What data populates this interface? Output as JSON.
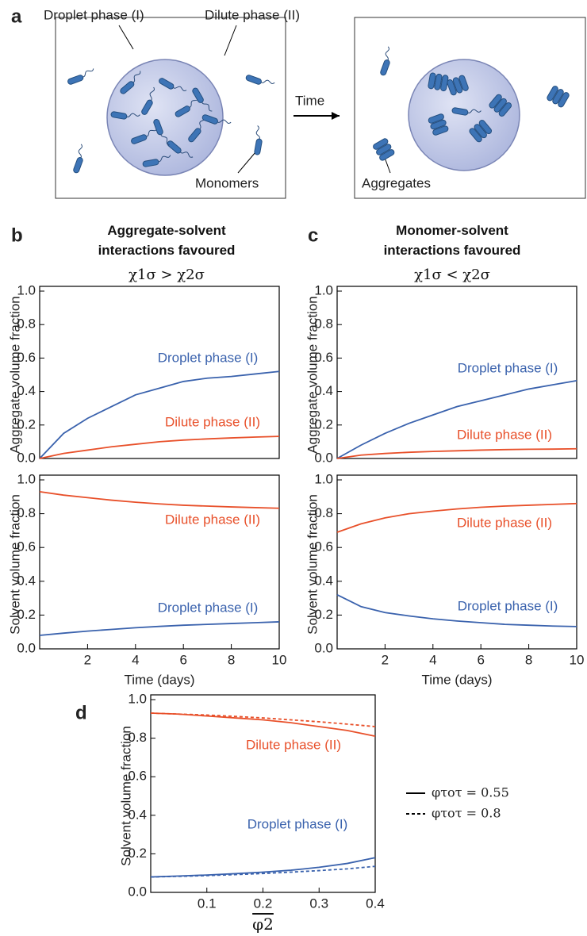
{
  "panel_a": {
    "label": "a",
    "droplet_label": "Droplet phase (I)",
    "dilute_label": "Dilute phase (II)",
    "monomers_label": "Monomers",
    "arrow_label": "Time",
    "aggregates_label": "Aggregates"
  },
  "chart_data": [
    {
      "type": "line",
      "panel": "b",
      "title": "Aggregate-solvent interactions favoured",
      "subtitle": "χ1σ > χ2σ",
      "ylabel": "Aggregate volume fraction",
      "x": [
        0,
        1,
        2,
        3,
        4,
        5,
        6,
        7,
        8,
        9,
        10
      ],
      "xlim": [
        0,
        10
      ],
      "ylim": [
        0,
        1
      ],
      "yticks": [
        {
          "value": 0,
          "label": "0.0"
        },
        0.2,
        0.4,
        0.6,
        0.8,
        {
          "value": 1,
          "label": "1.0"
        }
      ],
      "series": [
        {
          "name": "Droplet phase (I)",
          "color": "#3a62ad",
          "values": [
            0,
            0.15,
            0.24,
            0.31,
            0.38,
            0.42,
            0.46,
            0.48,
            0.49,
            0.505,
            0.52
          ]
        },
        {
          "name": "Dilute phase (II)",
          "color": "#e8502a",
          "values": [
            0,
            0.03,
            0.05,
            0.07,
            0.085,
            0.1,
            0.11,
            0.117,
            0.123,
            0.128,
            0.132
          ]
        }
      ]
    },
    {
      "type": "line",
      "ylabel": "Solvent volume fraction",
      "xlabel": "Time (days)",
      "x": [
        0,
        1,
        2,
        3,
        4,
        5,
        6,
        7,
        8,
        9,
        10
      ],
      "xlim": [
        0,
        10
      ],
      "ylim": [
        0,
        1
      ],
      "xticks": [
        2,
        4,
        6,
        8,
        10
      ],
      "yticks": [
        {
          "value": 0,
          "label": "0.0"
        },
        0.2,
        0.4,
        0.6,
        0.8,
        {
          "value": 1,
          "label": "1.0"
        }
      ],
      "series": [
        {
          "name": "Droplet phase (I)",
          "color": "#3a62ad",
          "values": [
            0.08,
            0.093,
            0.105,
            0.115,
            0.125,
            0.133,
            0.14,
            0.145,
            0.15,
            0.155,
            0.16
          ]
        },
        {
          "name": "Dilute phase (II)",
          "color": "#e8502a",
          "values": [
            0.93,
            0.91,
            0.895,
            0.88,
            0.868,
            0.858,
            0.85,
            0.845,
            0.84,
            0.836,
            0.832
          ]
        }
      ]
    },
    {
      "type": "line",
      "panel": "c",
      "title": "Monomer-solvent interactions favoured",
      "subtitle": "χ1σ < χ2σ",
      "ylabel": "Aggregate volume fraction",
      "x": [
        0,
        1,
        2,
        3,
        4,
        5,
        6,
        7,
        8,
        9,
        10
      ],
      "xlim": [
        0,
        10
      ],
      "ylim": [
        0,
        1
      ],
      "yticks": [
        {
          "value": 0,
          "label": "0.0"
        },
        0.2,
        0.4,
        0.6,
        0.8,
        {
          "value": 1,
          "label": "1.0"
        }
      ],
      "series": [
        {
          "name": "Droplet phase (I)",
          "color": "#3a62ad",
          "values": [
            0,
            0.08,
            0.15,
            0.21,
            0.26,
            0.31,
            0.345,
            0.38,
            0.415,
            0.44,
            0.465
          ]
        },
        {
          "name": "Dilute phase (II)",
          "color": "#e8502a",
          "values": [
            0,
            0.02,
            0.03,
            0.037,
            0.042,
            0.046,
            0.05,
            0.053,
            0.055,
            0.056,
            0.058
          ]
        }
      ]
    },
    {
      "type": "line",
      "ylabel": "Solvent volume fraction",
      "xlabel": "Time (days)",
      "x": [
        0,
        1,
        2,
        3,
        4,
        5,
        6,
        7,
        8,
        9,
        10
      ],
      "xlim": [
        0,
        10
      ],
      "ylim": [
        0,
        1
      ],
      "xticks": [
        2,
        4,
        6,
        8,
        10
      ],
      "yticks": [
        {
          "value": 0,
          "label": "0.0"
        },
        0.2,
        0.4,
        0.6,
        0.8,
        {
          "value": 1,
          "label": "1.0"
        }
      ],
      "series": [
        {
          "name": "Droplet phase (I)",
          "color": "#3a62ad",
          "values": [
            0.32,
            0.25,
            0.215,
            0.195,
            0.178,
            0.165,
            0.155,
            0.145,
            0.14,
            0.135,
            0.132
          ]
        },
        {
          "name": "Dilute phase (II)",
          "color": "#e8502a",
          "values": [
            0.69,
            0.74,
            0.775,
            0.8,
            0.815,
            0.828,
            0.838,
            0.845,
            0.85,
            0.855,
            0.86
          ]
        }
      ]
    },
    {
      "type": "line",
      "panel": "d",
      "ylabel": "Solvent volume fraction",
      "xlabel": "φ2",
      "x": [
        0,
        0.05,
        0.1,
        0.15,
        0.2,
        0.25,
        0.3,
        0.35,
        0.4
      ],
      "xlim": [
        0,
        0.4
      ],
      "ylim": [
        0,
        1
      ],
      "xticks": [
        0.1,
        0.2,
        0.3,
        0.4
      ],
      "yticks": [
        {
          "value": 0,
          "label": "0.0"
        },
        0.2,
        0.4,
        0.6,
        0.8,
        {
          "value": 1,
          "label": "1.0"
        }
      ],
      "annotations": [
        "Dilute phase (II)",
        "Droplet phase (I)"
      ],
      "legend": [
        {
          "label": "φτοτ = 0.55",
          "dash": "solid"
        },
        {
          "label": "φτοτ = 0.8",
          "dash": "dashed"
        }
      ],
      "series": [
        {
          "color": "#e8502a",
          "dash": "solid",
          "values": [
            0.93,
            0.925,
            0.915,
            0.905,
            0.895,
            0.88,
            0.86,
            0.84,
            0.81
          ]
        },
        {
          "color": "#e8502a",
          "dash": "dashed",
          "values": [
            0.93,
            0.925,
            0.92,
            0.913,
            0.905,
            0.895,
            0.885,
            0.873,
            0.86
          ]
        },
        {
          "color": "#3a62ad",
          "dash": "solid",
          "values": [
            0.08,
            0.085,
            0.09,
            0.097,
            0.105,
            0.115,
            0.13,
            0.15,
            0.18
          ]
        },
        {
          "color": "#3a62ad",
          "dash": "dashed",
          "values": [
            0.08,
            0.083,
            0.087,
            0.092,
            0.098,
            0.105,
            0.113,
            0.122,
            0.135
          ]
        }
      ]
    }
  ]
}
